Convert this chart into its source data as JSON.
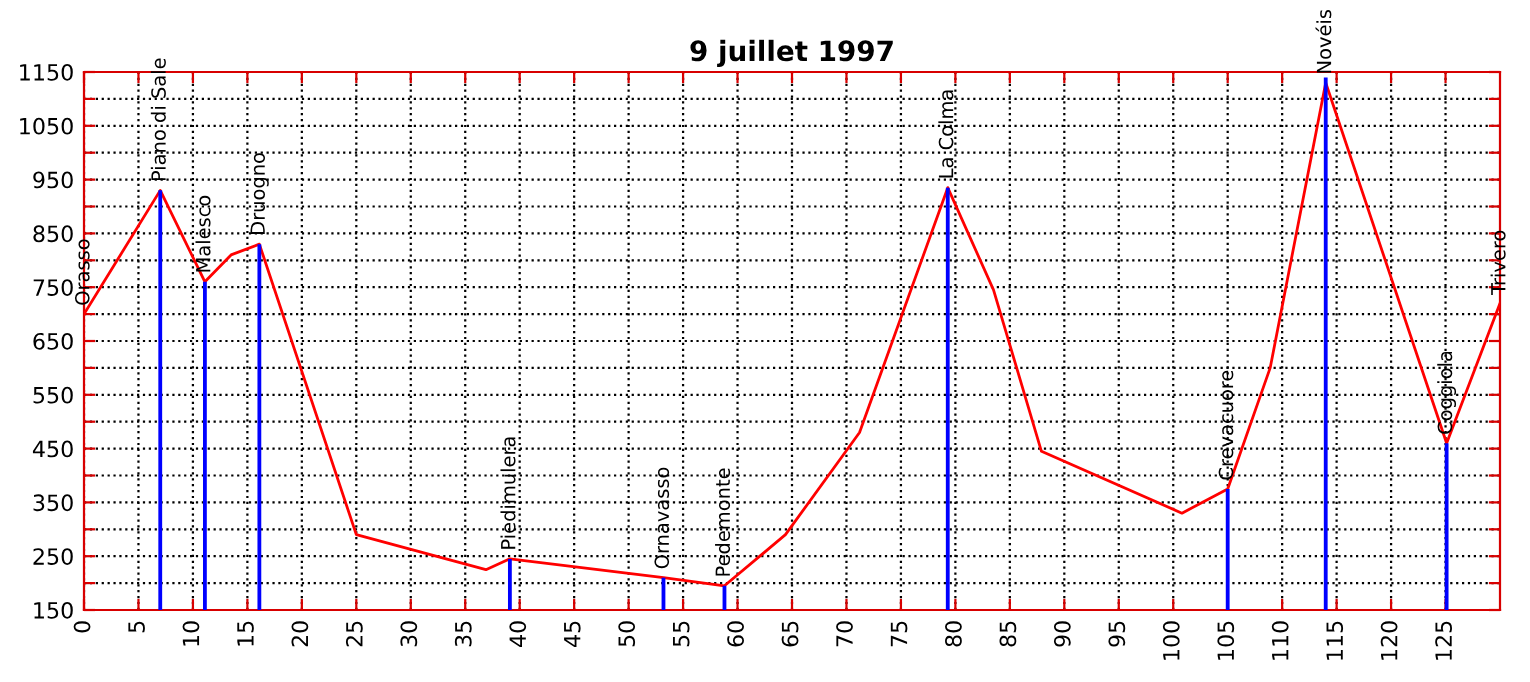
{
  "chart_data": {
    "type": "line",
    "title": "9 juillet 1997",
    "series": [
      {
        "color": "#ff0000",
        "x": [
          0,
          7,
          11.1,
          13.5,
          16.1,
          25,
          36.9,
          39.1,
          53.2,
          58.8,
          64.4,
          71.2,
          79.3,
          83.5,
          87.9,
          100.8,
          105,
          108.9,
          114,
          125.1,
          130
        ],
        "values": [
          700,
          930,
          760,
          810,
          830,
          290,
          225,
          245,
          210,
          195,
          290,
          480,
          935,
          745,
          445,
          330,
          375,
          600,
          1130,
          460,
          720
        ]
      },
      {
        "type": "bar",
        "color": "#0000ff",
        "x": [
          7,
          11.1,
          16.1,
          39.1,
          53.2,
          58.8,
          79.3,
          105,
          114,
          125.1
        ],
        "values": [
          930,
          760,
          830,
          245,
          210,
          195,
          935,
          375,
          1140,
          460
        ]
      }
    ],
    "annotations": [
      {
        "text": "Orasso",
        "x": 0,
        "y": 700
      },
      {
        "text": "Piano di Sale",
        "x": 7,
        "y": 930
      },
      {
        "text": "Malesco",
        "x": 11.1,
        "y": 760
      },
      {
        "text": "Druogno",
        "x": 16.1,
        "y": 830
      },
      {
        "text": "Piedimulera",
        "x": 39.1,
        "y": 245
      },
      {
        "text": "Ornavasso",
        "x": 53.2,
        "y": 210
      },
      {
        "text": "Pedemonte",
        "x": 58.8,
        "y": 195
      },
      {
        "text": "La Colma",
        "x": 79.3,
        "y": 935
      },
      {
        "text": "Crevacuore",
        "x": 105,
        "y": 375
      },
      {
        "text": "Novéis",
        "x": 114,
        "y": 1130
      },
      {
        "text": "Coggiola",
        "x": 125.1,
        "y": 460
      },
      {
        "text": "Trivero",
        "x": 130,
        "y": 720
      }
    ],
    "xlim": [
      0,
      130
    ],
    "xticks": [
      0,
      5,
      10,
      15,
      20,
      25,
      30,
      35,
      40,
      45,
      50,
      55,
      60,
      65,
      70,
      75,
      80,
      85,
      90,
      95,
      100,
      105,
      110,
      115,
      120,
      125
    ],
    "ylim": [
      150,
      1150
    ],
    "yticks": [
      150,
      {
        "value": 200,
        "label": null
      },
      250,
      {
        "value": 300,
        "label": null
      },
      350,
      {
        "value": 400,
        "label": null
      },
      450,
      {
        "value": 500,
        "label": null
      },
      550,
      {
        "value": 600,
        "label": null
      },
      650,
      {
        "value": 700,
        "label": null
      },
      750,
      {
        "value": 800,
        "label": null
      },
      850,
      {
        "value": 900,
        "label": null
      },
      950,
      {
        "value": 1000,
        "label": null
      },
      1050,
      {
        "value": 1100,
        "label": null
      },
      1150
    ],
    "grid": true,
    "legend": false,
    "marker": "none",
    "line_style": "solid"
  }
}
